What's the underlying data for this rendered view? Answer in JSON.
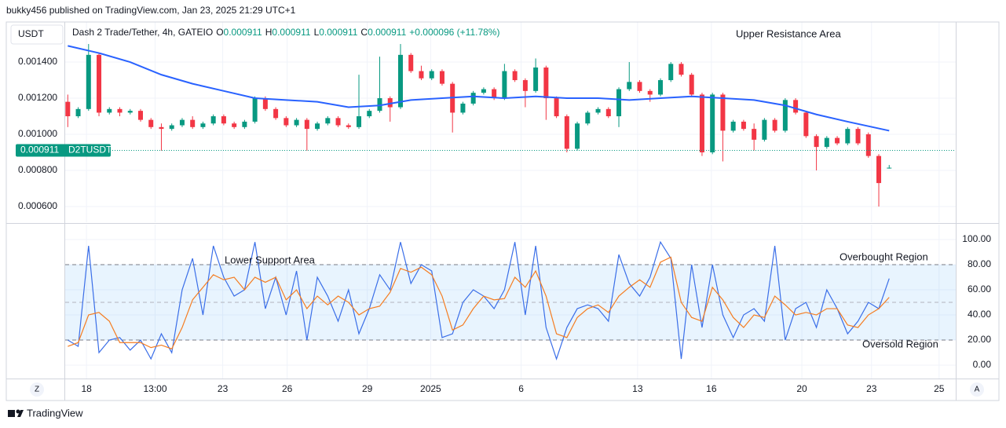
{
  "header": {
    "publisher": "bukky456 published on TradingView.com, Jan 23, 2025 21:29 UTC+1",
    "currency": "USDT",
    "symbol": "Dash 2 Trade/Tether, 4h, GATEIO",
    "ohlc_labels": [
      "O",
      "H",
      "L",
      "C"
    ],
    "ohlc_values": [
      0.000911,
      0.000911,
      0.000911,
      0.000911
    ],
    "change": "+0.000096 (+11.78%)"
  },
  "footer": {
    "brand": "TradingView",
    "axis_buttons": [
      "Z",
      "A"
    ]
  },
  "chart_data": [
    {
      "type": "candlestick",
      "annotation": "Upper Resistance Area",
      "up_color": "#089981",
      "down_color": "#f23645",
      "x": [
        0,
        1,
        2,
        3,
        4,
        5,
        6,
        7,
        8,
        9,
        10,
        11,
        12,
        13,
        14,
        15,
        16,
        17,
        18,
        19,
        20,
        21,
        22,
        23,
        24,
        25,
        26,
        27,
        28,
        29,
        30,
        31,
        32,
        33,
        34,
        35,
        36,
        37,
        38,
        39,
        40,
        41,
        42,
        43,
        44,
        45,
        46,
        47,
        48,
        49,
        50,
        51,
        52,
        53,
        54,
        55,
        56,
        57,
        58,
        59,
        60,
        61,
        62,
        63,
        64,
        65,
        66,
        67,
        68,
        69,
        70,
        71,
        72,
        73,
        74,
        75,
        76,
        77,
        78,
        79
      ],
      "open": [
        0.00118,
        0.0011,
        0.00114,
        0.00144,
        0.00112,
        0.00114,
        0.00112,
        0.00113,
        0.00108,
        0.00104,
        0.00103,
        0.00105,
        0.00108,
        0.00104,
        0.00106,
        0.0011,
        0.00106,
        0.00104,
        0.00107,
        0.0012,
        0.00114,
        0.00109,
        0.00105,
        0.00108,
        0.00103,
        0.00106,
        0.00109,
        0.00105,
        0.00104,
        0.0011,
        0.00113,
        0.0012,
        0.00115,
        0.00144,
        0.00135,
        0.00131,
        0.00135,
        0.00128,
        0.00112,
        0.00117,
        0.00123,
        0.00125,
        0.0012,
        0.00135,
        0.0013,
        0.00124,
        0.00137,
        0.0012,
        0.0011,
        0.00092,
        0.00106,
        0.00112,
        0.00114,
        0.0011,
        0.00125,
        0.00129,
        0.00124,
        0.00122,
        0.0013,
        0.00139,
        0.00133,
        0.00122,
        0.0009,
        0.00122,
        0.00102,
        0.00107,
        0.00103,
        0.00097,
        0.00108,
        0.00102,
        0.00119,
        0.00112,
        0.00099,
        0.00093,
        0.00098,
        0.00095,
        0.00103,
        0.001,
        0.00088,
        0.000815
      ],
      "high": [
        0.00122,
        0.00115,
        0.0015,
        0.00145,
        0.00115,
        0.00115,
        0.00114,
        0.00114,
        0.00109,
        0.00106,
        0.00106,
        0.00109,
        0.0011,
        0.00107,
        0.00111,
        0.00111,
        0.00107,
        0.00108,
        0.00121,
        0.00121,
        0.00115,
        0.0011,
        0.00109,
        0.00109,
        0.00107,
        0.0011,
        0.0011,
        0.00106,
        0.00133,
        0.00114,
        0.00143,
        0.00121,
        0.0015,
        0.00145,
        0.00138,
        0.00136,
        0.00136,
        0.00129,
        0.00118,
        0.00124,
        0.00126,
        0.00126,
        0.00139,
        0.00136,
        0.00131,
        0.00142,
        0.00138,
        0.00121,
        0.00111,
        0.00107,
        0.00113,
        0.00115,
        0.00115,
        0.00126,
        0.0014,
        0.0013,
        0.00125,
        0.00131,
        0.0014,
        0.0014,
        0.00134,
        0.00123,
        0.00123,
        0.00123,
        0.00108,
        0.00108,
        0.00106,
        0.00109,
        0.00109,
        0.0012,
        0.0012,
        0.00113,
        0.001,
        0.00099,
        0.00099,
        0.00104,
        0.00104,
        0.00101,
        0.00089,
        0.00083
      ],
      "low": [
        0.00104,
        0.00109,
        0.00113,
        0.0011,
        0.00111,
        0.0011,
        0.00111,
        0.00107,
        0.00103,
        0.00091,
        0.00102,
        0.00104,
        0.00103,
        0.00103,
        0.00105,
        0.00105,
        0.00103,
        0.00103,
        0.00106,
        0.00113,
        0.00108,
        0.00104,
        0.00104,
        0.00091,
        0.00102,
        0.00105,
        0.00104,
        0.00103,
        0.00103,
        0.00109,
        0.00112,
        0.00107,
        0.00114,
        0.00134,
        0.0013,
        0.0013,
        0.00127,
        0.00101,
        0.00111,
        0.00116,
        0.00122,
        0.00119,
        0.00119,
        0.00129,
        0.00115,
        0.00123,
        0.00108,
        0.00109,
        0.0009,
        0.00091,
        0.00105,
        0.00111,
        0.00109,
        0.00104,
        0.00124,
        0.00123,
        0.00118,
        0.00121,
        0.00129,
        0.00132,
        0.00121,
        0.00088,
        0.00089,
        0.00085,
        0.00101,
        0.00102,
        0.00091,
        0.00096,
        0.00101,
        0.00101,
        0.00111,
        0.00098,
        0.0008,
        0.00092,
        0.00094,
        0.00094,
        0.00094,
        0.00087,
        0.0006,
        0.00081
      ],
      "close": [
        0.0011,
        0.00114,
        0.00144,
        0.00112,
        0.00114,
        0.00112,
        0.00113,
        0.00108,
        0.00104,
        0.00103,
        0.00105,
        0.00108,
        0.00104,
        0.00106,
        0.0011,
        0.00106,
        0.00104,
        0.00107,
        0.0012,
        0.00114,
        0.00109,
        0.00105,
        0.00108,
        0.00103,
        0.00106,
        0.00109,
        0.00105,
        0.00104,
        0.0011,
        0.00113,
        0.0012,
        0.00115,
        0.00144,
        0.00135,
        0.00131,
        0.00135,
        0.00128,
        0.00112,
        0.00117,
        0.00123,
        0.00125,
        0.0012,
        0.00135,
        0.0013,
        0.00124,
        0.00137,
        0.0012,
        0.0011,
        0.00092,
        0.00106,
        0.00112,
        0.00114,
        0.0011,
        0.00125,
        0.00129,
        0.00124,
        0.00122,
        0.0013,
        0.00139,
        0.00133,
        0.00122,
        0.0009,
        0.00122,
        0.00102,
        0.00107,
        0.00103,
        0.00097,
        0.00108,
        0.00102,
        0.00119,
        0.00112,
        0.00099,
        0.00093,
        0.00098,
        0.00095,
        0.00103,
        0.00095,
        0.00088,
        0.00073,
        0.000815
      ],
      "ma": {
        "color": "#2962ff",
        "x": [
          0,
          3,
          6,
          9,
          12,
          15,
          18,
          21,
          24,
          27,
          30,
          33,
          36,
          39,
          42,
          45,
          48,
          51,
          54,
          57,
          60,
          63,
          66,
          69,
          72,
          75,
          79
        ],
        "values": [
          0.00149,
          0.00145,
          0.0014,
          0.00133,
          0.00128,
          0.00124,
          0.0012,
          0.00119,
          0.00118,
          0.00115,
          0.00116,
          0.00119,
          0.0012,
          0.00121,
          0.0012,
          0.00121,
          0.0012,
          0.0012,
          0.00119,
          0.0012,
          0.00121,
          0.0012,
          0.00119,
          0.00116,
          0.00111,
          0.00107,
          0.00102
        ]
      },
      "last_price": 0.000911,
      "last_price_symbol": "D2TUSDT",
      "last_price_color": "#089981",
      "xlim": [
        -0.25,
        85.4
      ],
      "xticks": [
        {
          "value": 1.8,
          "label": "18"
        },
        {
          "value": 8.4,
          "label": "13:00"
        },
        {
          "value": 14.9,
          "label": "23"
        },
        {
          "value": 21.1,
          "label": "26"
        },
        {
          "value": 28.8,
          "label": "29"
        },
        {
          "value": 34.9,
          "label": "2025"
        },
        {
          "value": 43.6,
          "label": "6"
        },
        {
          "value": 54.8,
          "label": "13"
        },
        {
          "value": 61.9,
          "label": "16"
        },
        {
          "value": 70.6,
          "label": "20"
        },
        {
          "value": 77.3,
          "label": "23"
        },
        {
          "value": 83.8,
          "label": "25"
        }
      ],
      "ylim": [
        0.000513,
        0.001622
      ],
      "yticks": [
        {
          "value": 0.0006,
          "label": "0.000600"
        },
        {
          "value": 0.0008,
          "label": "0.000800"
        },
        {
          "value": 0.001,
          "label": "0.001000"
        },
        {
          "value": 0.0012,
          "label": "0.001200"
        },
        {
          "value": 0.0014,
          "label": "0.001400"
        }
      ],
      "grid": true
    },
    {
      "type": "line",
      "annotations": [
        "Lower Support Area",
        "Overbought Region",
        "Oversold Region"
      ],
      "series": [
        {
          "color": "#3a6ee8",
          "values": [
            20,
            15,
            95,
            10,
            20,
            22,
            12,
            20,
            5,
            25,
            10,
            60,
            85,
            40,
            95,
            70,
            55,
            60,
            98,
            45,
            70,
            40,
            75,
            20,
            70,
            55,
            35,
            60,
            25,
            45,
            72,
            60,
            98,
            65,
            80,
            75,
            22,
            25,
            50,
            60,
            55,
            45,
            60,
            98,
            40,
            95,
            30,
            5,
            30,
            45,
            48,
            45,
            35,
            88,
            65,
            55,
            70,
            98,
            85,
            5,
            80,
            30,
            80,
            40,
            22,
            40,
            45,
            35,
            95,
            20,
            45,
            50,
            30,
            60,
            45,
            25,
            35,
            50,
            45,
            69
          ]
        },
        {
          "color": "#f57c20",
          "values": [
            15,
            18,
            40,
            42,
            35,
            18,
            18,
            18,
            14,
            16,
            13,
            30,
            52,
            62,
            72,
            68,
            70,
            60,
            70,
            66,
            70,
            52,
            60,
            45,
            55,
            48,
            55,
            50,
            40,
            45,
            47,
            58,
            77,
            74,
            78,
            72,
            55,
            28,
            32,
            45,
            55,
            52,
            53,
            70,
            62,
            75,
            55,
            25,
            22,
            38,
            45,
            48,
            42,
            55,
            62,
            68,
            62,
            82,
            86,
            50,
            38,
            35,
            62,
            52,
            38,
            30,
            40,
            38,
            55,
            48,
            40,
            42,
            40,
            45,
            45,
            32,
            30,
            40,
            45,
            54
          ]
        }
      ],
      "bands": [
        80,
        20
      ],
      "midline": 50,
      "band_fill": "rgba(33,150,243,0.1)",
      "ylim": [
        -10.6,
        111.9
      ],
      "yticks": [
        {
          "value": 0,
          "label": "0.00"
        },
        {
          "value": 20,
          "label": "20.00"
        },
        {
          "value": 40,
          "label": "40.00"
        },
        {
          "value": 60,
          "label": "60.00"
        },
        {
          "value": 80,
          "label": "80.00"
        },
        {
          "value": 100,
          "label": "100.00"
        }
      ],
      "grid": true
    }
  ]
}
